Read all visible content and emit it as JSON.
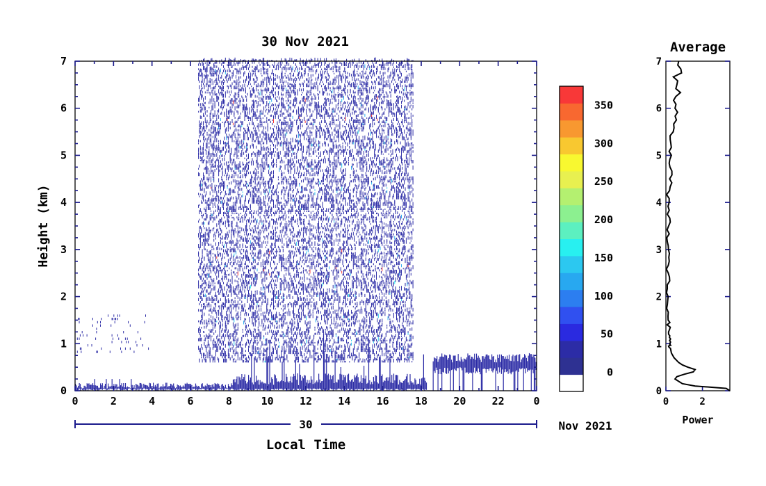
{
  "chart_data": [
    {
      "type": "heatmap",
      "title": "30 Nov 2021",
      "xlabel": "Local Time",
      "ylabel": "Height (km)",
      "xlim": [
        0,
        24
      ],
      "ylim": [
        0,
        7
      ],
      "xticks": [
        "0",
        "2",
        "4",
        "6",
        "8",
        "10",
        "12",
        "14",
        "16",
        "18",
        "20",
        "22",
        "0"
      ],
      "yticks": [
        "0",
        "1",
        "2",
        "3",
        "4",
        "5",
        "6",
        "7"
      ],
      "date_bar": {
        "day": "30",
        "month_year": "Nov 2021"
      },
      "colorbar": {
        "ticks": [
          "0",
          "50",
          "100",
          "150",
          "200",
          "250",
          "300",
          "350"
        ],
        "tick_values": [
          0,
          50,
          100,
          150,
          200,
          250,
          300,
          350
        ],
        "range": [
          -25,
          375
        ],
        "colors": [
          "#ffffff",
          "#2e3192",
          "#2c2ca6",
          "#2a2ae0",
          "#3050f0",
          "#2c7ef0",
          "#28a8f0",
          "#2cc8f0",
          "#28f0f0",
          "#5cf0c0",
          "#8cf090",
          "#b4f070",
          "#e8f050",
          "#f8f830",
          "#f8c830",
          "#f89830",
          "#f86830",
          "#f83838"
        ]
      },
      "bands": [
        {
          "name": "noise_scatter",
          "x_range": [
            6.4,
            17.6
          ],
          "height_range": [
            0.6,
            7.0
          ],
          "dominant_value": 25
        },
        {
          "name": "boundary_layer_night_early",
          "x_range": [
            0,
            8.2
          ],
          "height_range": [
            0.0,
            0.25
          ],
          "dominant_value": 25
        },
        {
          "name": "boundary_layer_day",
          "x_range": [
            8.2,
            18.3
          ],
          "height_range": [
            0.0,
            1.2
          ],
          "dominant_value": 25
        },
        {
          "name": "boundary_layer_evening",
          "x_range": [
            18.6,
            24
          ],
          "height_range": [
            0.2,
            0.85
          ],
          "dominant_value": 25
        }
      ]
    },
    {
      "type": "line",
      "title": "Average",
      "xlabel": "Power",
      "ylabel": "",
      "xlim": [
        0,
        3.5
      ],
      "ylim": [
        0,
        7
      ],
      "xticks": [
        "0",
        "2"
      ],
      "yticks": [
        "0",
        "1",
        "2",
        "3",
        "4",
        "5",
        "6",
        "7"
      ],
      "profile": {
        "height": [
          0.0,
          0.05,
          0.1,
          0.15,
          0.2,
          0.25,
          0.3,
          0.35,
          0.4,
          0.45,
          0.5,
          0.55,
          0.6,
          0.7,
          0.8,
          0.9,
          1.0,
          1.2,
          1.5,
          2.0,
          2.5,
          3.0,
          3.5,
          4.0,
          4.5,
          5.0,
          5.5,
          6.0,
          6.5,
          7.0
        ],
        "power": [
          3.5,
          3.3,
          1.6,
          0.9,
          0.7,
          0.5,
          0.6,
          1.0,
          1.5,
          1.6,
          1.2,
          0.9,
          0.7,
          0.45,
          0.3,
          0.25,
          0.2,
          0.15,
          0.12,
          0.12,
          0.13,
          0.14,
          0.15,
          0.18,
          0.2,
          0.3,
          0.4,
          0.5,
          0.6,
          0.7
        ]
      }
    }
  ]
}
